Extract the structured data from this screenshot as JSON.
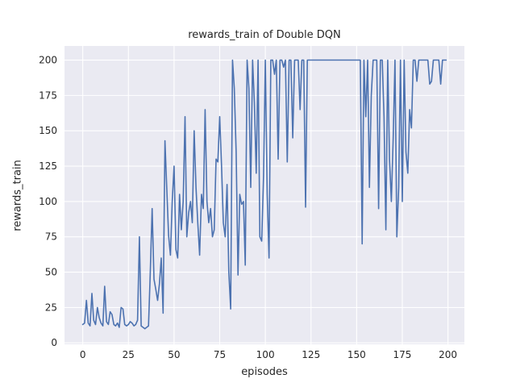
{
  "chart_data": {
    "type": "line",
    "title": "rewards_train of Double DQN",
    "xlabel": "episodes",
    "ylabel": "rewards_train",
    "xlim": [
      -10,
      209
    ],
    "ylim": [
      -1,
      210
    ],
    "xticks": [
      0,
      25,
      50,
      75,
      100,
      125,
      150,
      175,
      200
    ],
    "yticks": [
      0,
      25,
      50,
      75,
      100,
      125,
      150,
      175,
      200
    ],
    "grid": true,
    "legend_position": "none",
    "colors": {
      "line": "#4c72b0",
      "plot_background": "#eaeaf2",
      "grid": "#ffffff",
      "text": "#262626",
      "figure_background": "#ffffff"
    },
    "series": [
      {
        "name": "rewards_train",
        "x_start": 0,
        "x_step": 1,
        "values": [
          13,
          14,
          30,
          14,
          12,
          35,
          16,
          13,
          25,
          18,
          14,
          12,
          40,
          15,
          13,
          22,
          20,
          13,
          12,
          14,
          11,
          25,
          24,
          13,
          12,
          13,
          15,
          14,
          12,
          13,
          16,
          75,
          12,
          11,
          10,
          11,
          12,
          50,
          95,
          45,
          38,
          30,
          42,
          60,
          21,
          143,
          110,
          76,
          62,
          100,
          125,
          66,
          60,
          105,
          80,
          100,
          160,
          75,
          92,
          100,
          85,
          150,
          110,
          85,
          62,
          105,
          95,
          165,
          100,
          85,
          95,
          75,
          80,
          130,
          128,
          160,
          125,
          85,
          75,
          112,
          50,
          24,
          200,
          180,
          135,
          48,
          105,
          98,
          100,
          55,
          200,
          180,
          110,
          200,
          170,
          120,
          200,
          75,
          72,
          118,
          200,
          105,
          60,
          200,
          200,
          190,
          200,
          130,
          200,
          200,
          195,
          200,
          128,
          200,
          200,
          145,
          200,
          200,
          200,
          165,
          200,
          200,
          96,
          200,
          200,
          200,
          200,
          200,
          200,
          200,
          200,
          200,
          200,
          200,
          200,
          200,
          200,
          200,
          200,
          200,
          200,
          200,
          200,
          200,
          200,
          200,
          200,
          200,
          200,
          200,
          200,
          200,
          200,
          70,
          200,
          160,
          200,
          110,
          175,
          200,
          200,
          200,
          95,
          200,
          200,
          160,
          80,
          200,
          130,
          100,
          145,
          200,
          75,
          110,
          200,
          100,
          200,
          135,
          120,
          165,
          152,
          200,
          200,
          185,
          200,
          200,
          200,
          200,
          200,
          200,
          183,
          185,
          200,
          200,
          200,
          200,
          183,
          200,
          200,
          200
        ]
      }
    ]
  }
}
